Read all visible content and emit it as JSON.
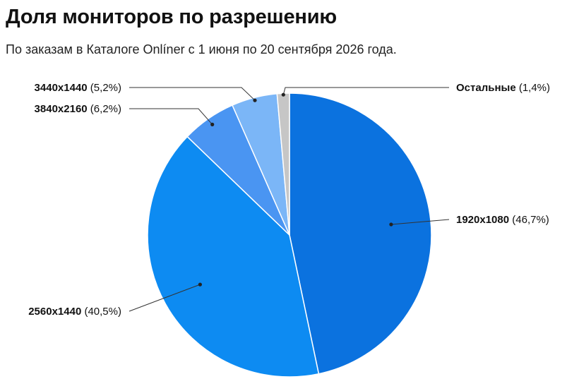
{
  "header": {
    "title": "Доля мониторов по разрешению",
    "subtitle": "По заказам в Каталоге Onlíner с 1 июня по 20 сентября 2026 года."
  },
  "chart_data": {
    "type": "pie",
    "title": "Доля мониторов по разрешению",
    "subtitle": "По заказам в Каталоге Onlíner с 1 июня по 20 сентября 2026 года.",
    "slices": [
      {
        "label": "1920x1080",
        "value": 46.7,
        "display": "(46,7%)",
        "color": "#0b72df"
      },
      {
        "label": "2560x1440",
        "value": 40.5,
        "display": "(40,5%)",
        "color": "#0d8bf2"
      },
      {
        "label": "3840x2160",
        "value": 6.2,
        "display": "(6,2%)",
        "color": "#4a95f2"
      },
      {
        "label": "3440x1440",
        "value": 5.2,
        "display": "(5,2%)",
        "color": "#7bb6f7"
      },
      {
        "label": "Остальные",
        "value": 1.4,
        "display": "(1,4%)",
        "color": "#c6c6c6"
      }
    ],
    "start_angle": "12 o'clock",
    "direction": "clockwise",
    "legend": "none",
    "labels": "outside-with-leader-lines"
  }
}
